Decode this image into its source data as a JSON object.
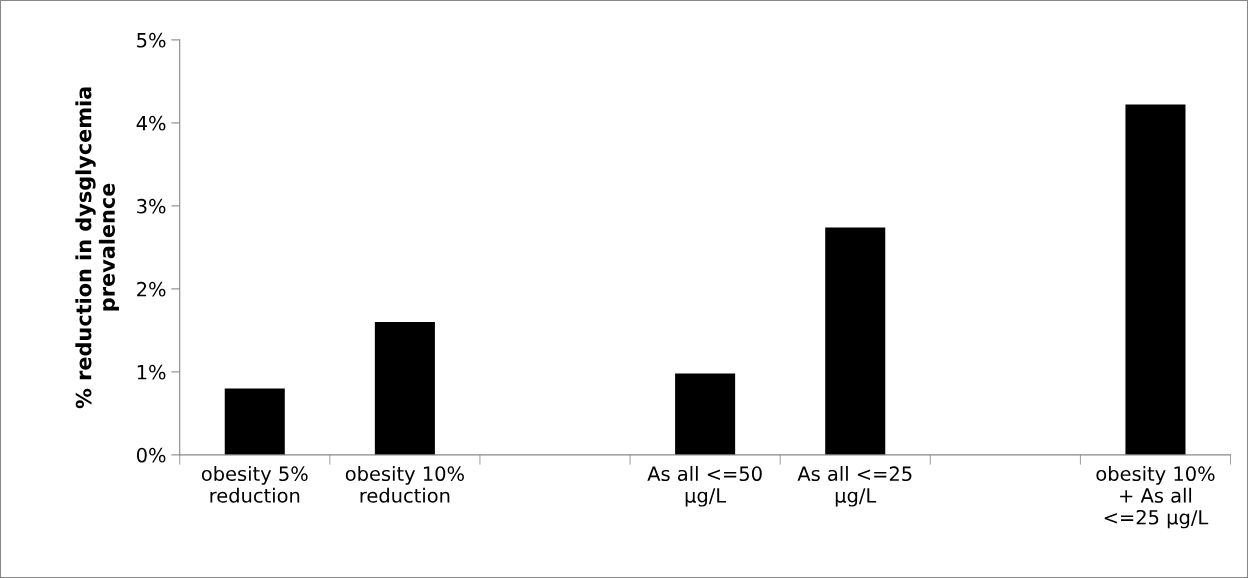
{
  "chart_data": {
    "type": "bar",
    "ylabel": "% reduction in dysglycemia\nprevalence",
    "categories": [
      "obesity 5%\nreduction",
      "obesity 10%\nreduction",
      null,
      "As all <=50\nµg/L",
      "As all <=25\nµg/L",
      null,
      "obesity 10%\n+ As all\n<=25 µg/L"
    ],
    "values": [
      0.8,
      1.6,
      null,
      0.98,
      2.74,
      null,
      4.22
    ],
    "color": "#000000",
    "ylim": [
      0,
      5
    ],
    "yticks": [
      {
        "value": 0,
        "label": "0%"
      },
      {
        "value": 1,
        "label": "1%"
      },
      {
        "value": 2,
        "label": "2%"
      },
      {
        "value": 3,
        "label": "3%"
      },
      {
        "value": 4,
        "label": "4%"
      },
      {
        "value": 5,
        "label": "5%"
      }
    ],
    "grid": false,
    "legend": false
  }
}
